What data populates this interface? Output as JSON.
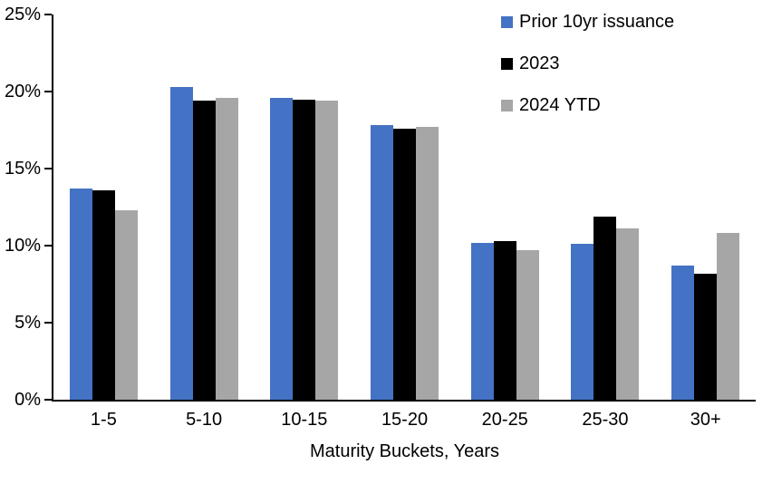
{
  "chart_data": {
    "type": "bar",
    "title": "",
    "categories": [
      "1-5",
      "5-10",
      "10-15",
      "15-20",
      "20-25",
      "25-30",
      "30+"
    ],
    "series": [
      {
        "name": "Prior 10yr issuance",
        "color": "#4472C4",
        "values": [
          13.7,
          20.3,
          19.6,
          17.8,
          10.2,
          10.1,
          8.7
        ]
      },
      {
        "name": "2023",
        "color": "#000000",
        "values": [
          13.6,
          19.4,
          19.5,
          17.6,
          10.3,
          11.9,
          8.2
        ]
      },
      {
        "name": "2024 YTD",
        "color": "#A6A6A6",
        "values": [
          12.3,
          19.6,
          19.4,
          17.7,
          9.7,
          11.1,
          10.8
        ]
      }
    ],
    "xlabel": "Maturity Buckets, Years",
    "ylabel": "",
    "ylim": [
      0,
      25
    ],
    "y_ticks": [
      "25%",
      "20%",
      "15%",
      "10%",
      "5%",
      "0%"
    ],
    "grid": false,
    "legend_position": "top-right",
    "axis_color": "#000000",
    "background_color": "#FFFFFF"
  }
}
